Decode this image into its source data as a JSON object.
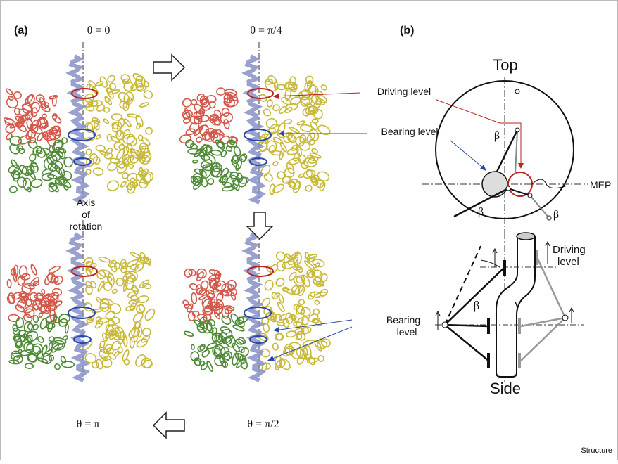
{
  "panel_a": {
    "label": "(a)",
    "frames": [
      "θ = 0",
      "θ = π/4",
      "θ = π",
      "θ = π/2"
    ],
    "axis_label": [
      "Axis",
      "of",
      "rotation"
    ],
    "driving_level": "Driving level",
    "bearing_level": "Bearing level"
  },
  "panel_b": {
    "label": "(b)",
    "top": {
      "title": "Top",
      "mep": "MEP",
      "angles": [
        "β",
        "β",
        "β"
      ]
    },
    "side": {
      "title": "Side",
      "driving_level": [
        "Driving",
        "level"
      ],
      "bearing_level": [
        "Bearing",
        "level"
      ],
      "beta": "β",
      "gamma": "γ"
    }
  },
  "credit": "Structure"
}
